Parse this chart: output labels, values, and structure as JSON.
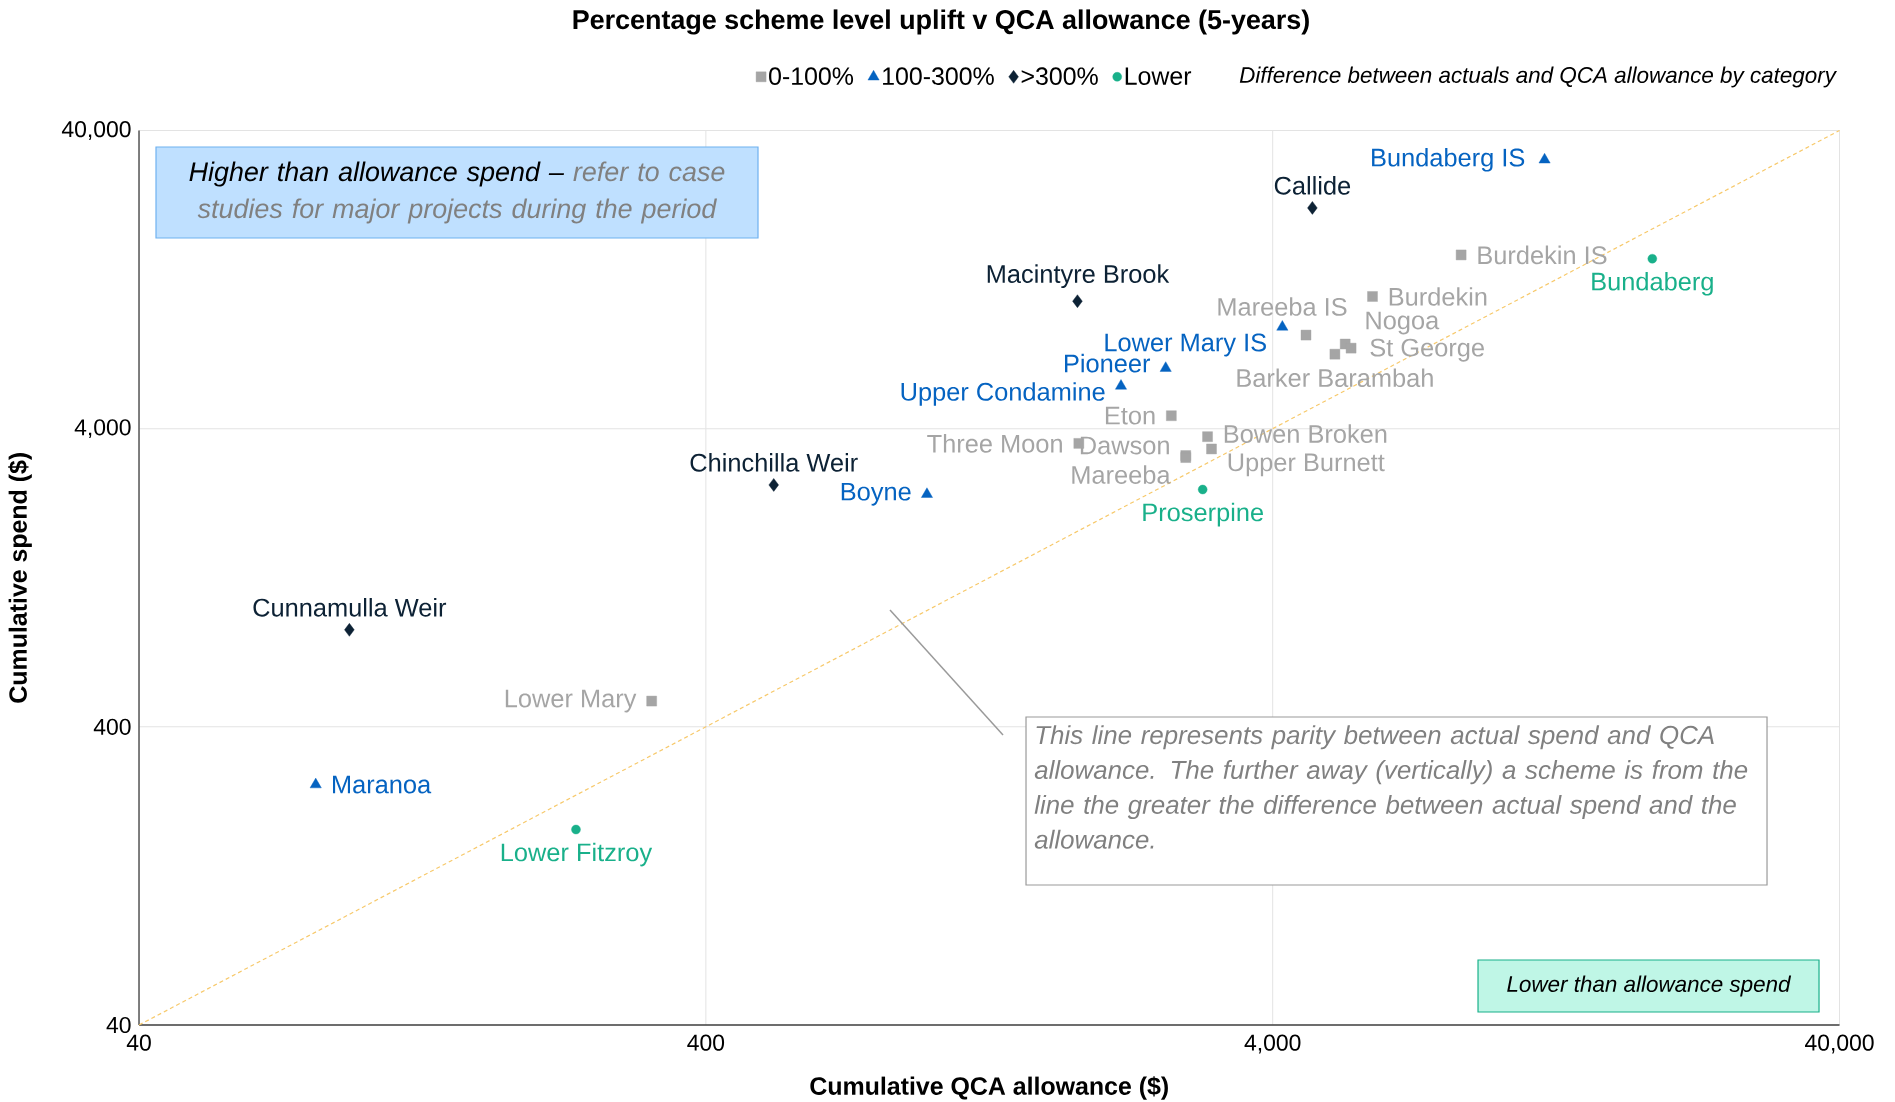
{
  "chart_data": {
    "type": "scatter",
    "title": "Percentage scheme level uplift v QCA allowance (5-years)",
    "xlabel": "Cumulative QCA allowance ($)",
    "ylabel": "Cumulative spend ($)",
    "legend_title": "Difference between actuals and QCA allowance by category",
    "log": "xy",
    "grid": true,
    "legend": "top",
    "xlim": [
      40,
      40000
    ],
    "ylim": [
      40,
      40000
    ],
    "xticks": [
      40,
      400,
      {
        "value": 4000,
        "label": "4,000"
      },
      {
        "value": 40000,
        "label": "40,000"
      }
    ],
    "yticks": [
      40,
      400,
      {
        "value": 4000,
        "label": "4,000"
      },
      {
        "value": 40000,
        "label": "40,000"
      }
    ],
    "series": [
      {
        "name": "0-100%",
        "color": "#a5a5a5",
        "marker": "square",
        "x": [
          8600,
          6000,
          4580,
          5370,
          5500,
          5150,
          2650,
          1820,
          3070,
          3120,
          2810,
          2810,
          321
        ],
        "values": [
          15300,
          11100,
          8240,
          7690,
          7450,
          7110,
          4420,
          3570,
          3760,
          3420,
          3250,
          3200,
          488
        ],
        "value_labels": [
          "Burdekin IS",
          "Burdekin",
          "Mareeba IS",
          "Nogoa",
          "St George",
          "Barker Barambah",
          "Eton",
          "Three Moon",
          "Bowen Broken",
          "Upper Burnett",
          "Dawson",
          "Mareeba",
          "Lower Mary"
        ]
      },
      {
        "name": "100-300%",
        "color": "#0563c1",
        "marker": "triangle",
        "x": [
          12070,
          4160,
          2590,
          2160,
          982,
          82
        ],
        "values": [
          31900,
          8770,
          6380,
          5560,
          2410,
          256
        ],
        "value_labels": [
          "Bundaberg IS",
          "Lower Mary IS",
          "Pioneer",
          "Upper Condamine",
          "Boyne",
          "Maranoa"
        ]
      },
      {
        "name": ">300%",
        "color": "#0d2235",
        "marker": "diamond",
        "x": [
          4700,
          1810,
          527,
          94
        ],
        "values": [
          22000,
          10700,
          2590,
          846
        ],
        "value_labels": [
          "Callide",
          "Macintyre Brook",
          "Chinchilla Weir",
          "Cunnamulla Weir"
        ]
      },
      {
        "name": "Lower",
        "color": "#19b08a",
        "marker": "circle",
        "x": [
          18700,
          3010,
          236
        ],
        "values": [
          14860,
          2500,
          181
        ],
        "value_labels": [
          "Bundaberg",
          "Proserpine",
          "Lower Fitzroy"
        ]
      },
      {
        "type": "line",
        "color": "#f7c96b",
        "line_style": "dashed",
        "x": [
          40,
          40000
        ],
        "values": [
          40,
          40000
        ]
      }
    ],
    "annotations": [
      "*Higher than allowance spend –*",
      "refer to case studies for major projects during the period",
      "This line represents parity between actual spend and QCA allowance. The further away (vertically) a scheme is from the line the greater the difference between actual spend and the allowance.",
      "Lower than allowance spend"
    ]
  }
}
